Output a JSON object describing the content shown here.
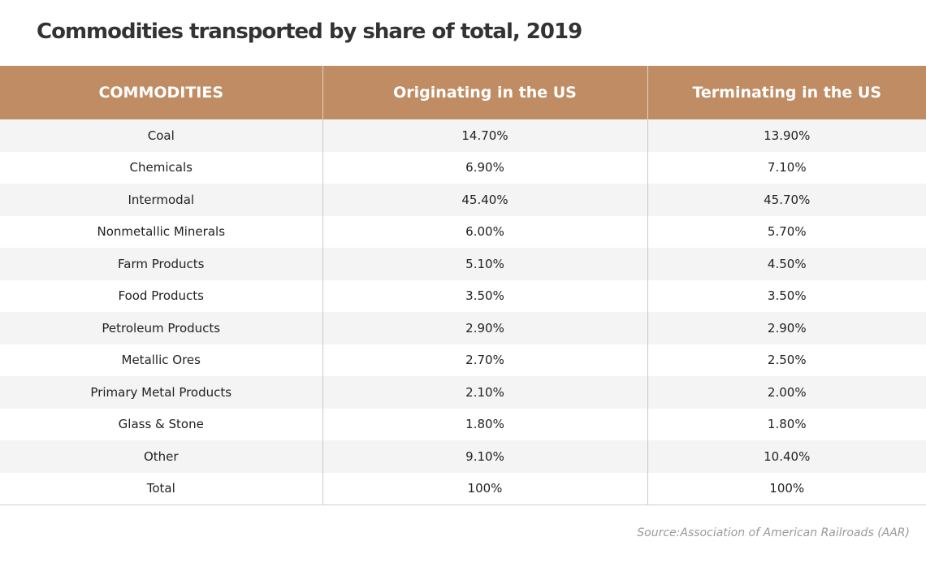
{
  "chart_data": {
    "type": "table",
    "title": "Commodities transported by share of total, 2019",
    "columns": [
      "COMMODITIES",
      "Originating in the US",
      "Terminating in the US"
    ],
    "rows": [
      {
        "commodity": "Coal",
        "originating": "14.70%",
        "terminating": "13.90%"
      },
      {
        "commodity": "Chemicals",
        "originating": "6.90%",
        "terminating": "7.10%"
      },
      {
        "commodity": "Intermodal",
        "originating": "45.40%",
        "terminating": "45.70%"
      },
      {
        "commodity": "Nonmetallic Minerals",
        "originating": "6.00%",
        "terminating": "5.70%"
      },
      {
        "commodity": "Farm Products",
        "originating": "5.10%",
        "terminating": "4.50%"
      },
      {
        "commodity": "Food Products",
        "originating": "3.50%",
        "terminating": "3.50%"
      },
      {
        "commodity": "Petroleum Products",
        "originating": "2.90%",
        "terminating": "2.90%"
      },
      {
        "commodity": "Metallic Ores",
        "originating": "2.70%",
        "terminating": "2.50%"
      },
      {
        "commodity": "Primary Metal Products",
        "originating": "2.10%",
        "terminating": "2.00%"
      },
      {
        "commodity": "Glass & Stone",
        "originating": "1.80%",
        "terminating": "1.80%"
      },
      {
        "commodity": "Other",
        "originating": "9.10%",
        "terminating": "10.40%"
      },
      {
        "commodity": "Total",
        "originating": "100%",
        "terminating": "100%"
      }
    ],
    "source": "Source:Association of American Railroads (AAR)"
  },
  "colors": {
    "header_background": "#bf8c63",
    "header_text": "#ffffff",
    "row_stripe": "#f4f4f4"
  }
}
